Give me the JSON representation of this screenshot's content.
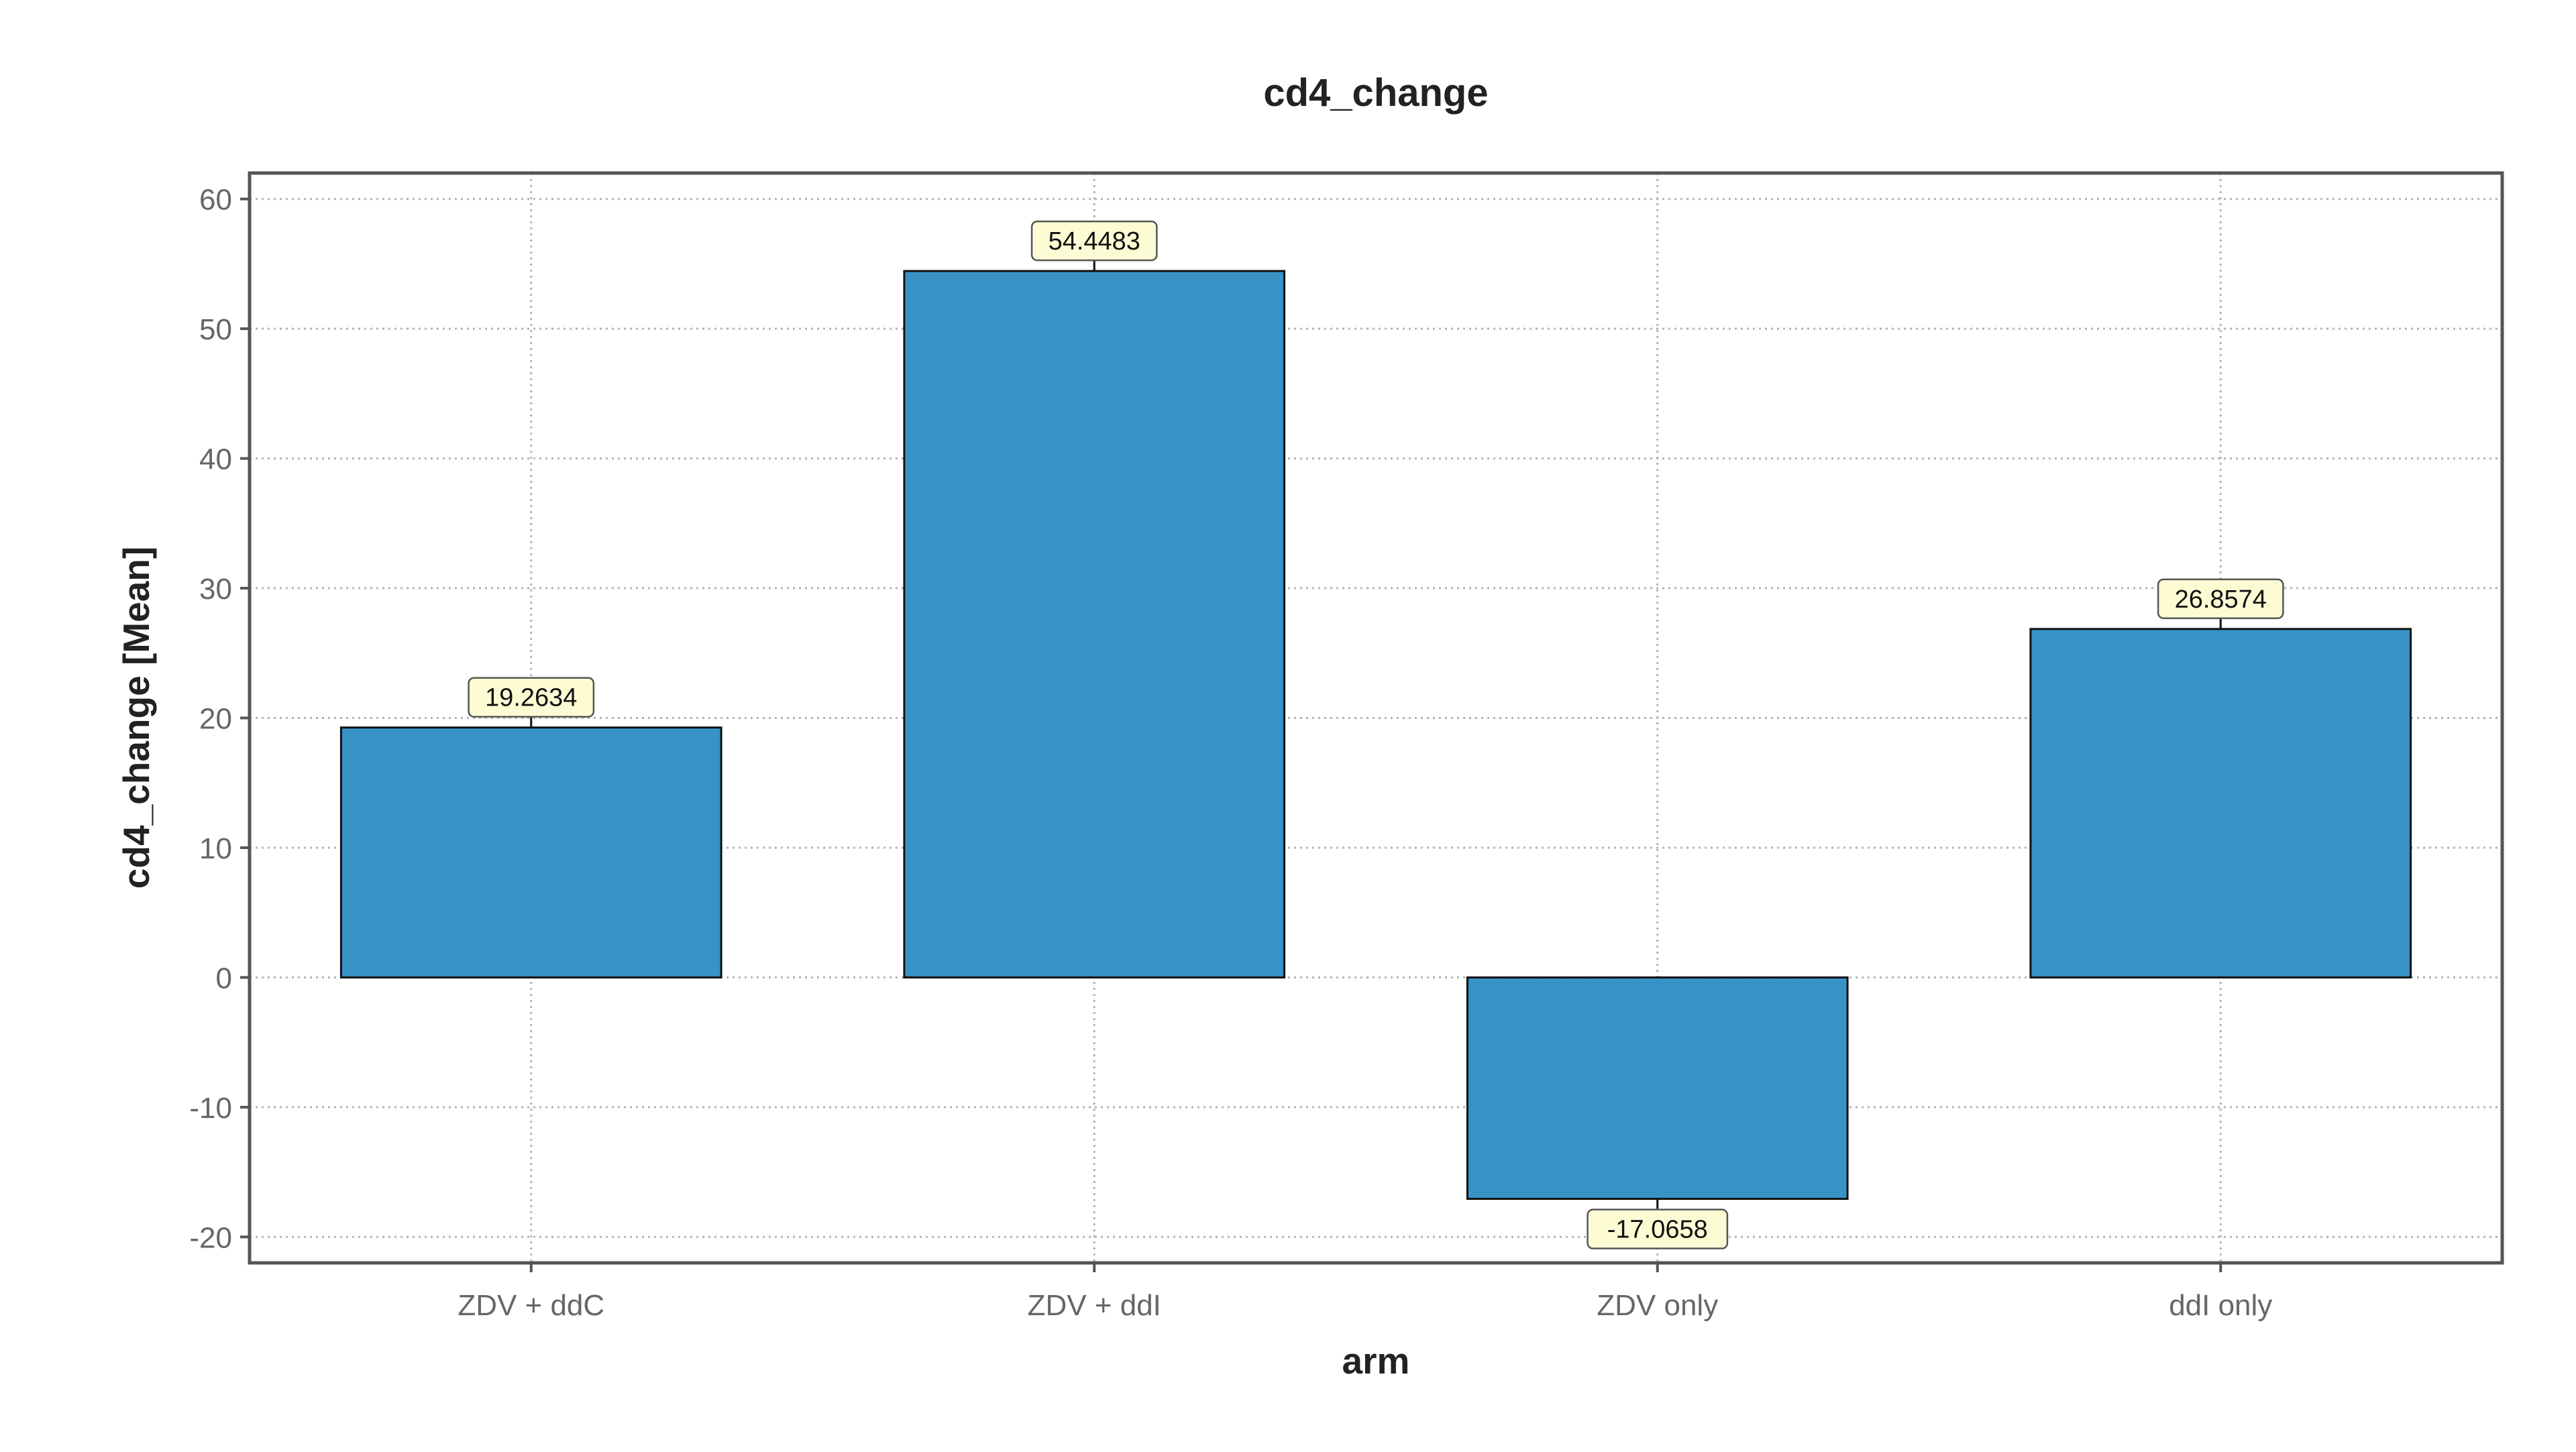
{
  "chart_data": {
    "type": "bar",
    "title": "cd4_change",
    "xlabel": "arm",
    "ylabel": "cd4_change [Mean]",
    "categories": [
      "ZDV + ddC",
      "ZDV + ddI",
      "ZDV only",
      "ddI only"
    ],
    "values": [
      19.2634,
      54.4483,
      -17.0658,
      26.8574
    ],
    "value_labels": [
      "19.2634",
      "54.4483",
      "-17.0658",
      "26.8574"
    ],
    "ylim": [
      -22,
      62
    ],
    "yticks": [
      -20,
      -10,
      0,
      10,
      20,
      30,
      40,
      50,
      60
    ],
    "ytick_labels": [
      "-20",
      "-10",
      "0",
      "10",
      "20",
      "30",
      "40",
      "50",
      "60"
    ],
    "grid": true,
    "colors": {
      "bar_fill": "#3892c6",
      "bar_edge": "#111111",
      "label_bg": "#fdfbd4",
      "label_border": "#555555",
      "grid": "#b3b3b3",
      "axis_frame": "#555555",
      "tick_text": "#666666",
      "title_text": "#222222"
    }
  }
}
